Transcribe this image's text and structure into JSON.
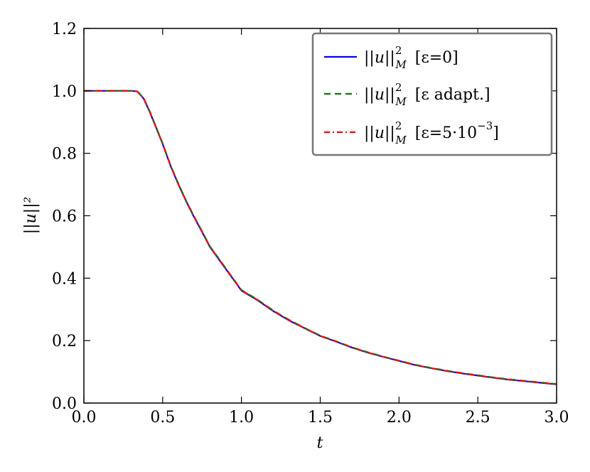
{
  "chart_data": {
    "type": "line",
    "xlabel": "t",
    "ylabel": "||u||²",
    "xlim": [
      0.0,
      3.0
    ],
    "ylim": [
      0.0,
      1.2
    ],
    "xticks": [
      "0.0",
      "0.5",
      "1.0",
      "1.5",
      "2.0",
      "2.5",
      "3.0"
    ],
    "yticks": [
      "0.0",
      "0.2",
      "0.4",
      "0.6",
      "0.8",
      "1.0",
      "1.2"
    ],
    "grid": false,
    "legend_position": "top-right",
    "x": [
      0.0,
      0.1,
      0.2,
      0.3,
      0.34,
      0.38,
      0.42,
      0.46,
      0.5,
      0.55,
      0.6,
      0.65,
      0.7,
      0.75,
      0.8,
      0.85,
      0.9,
      0.95,
      1.0,
      1.1,
      1.2,
      1.3,
      1.4,
      1.5,
      1.6,
      1.7,
      1.8,
      1.9,
      2.0,
      2.1,
      2.2,
      2.3,
      2.4,
      2.5,
      2.6,
      2.7,
      2.8,
      2.9,
      3.0
    ],
    "series": [
      {
        "name": "||u||²_M [ε=0]",
        "color": "#0000ff",
        "dash": "solid",
        "values": [
          1.0,
          1.0,
          1.0,
          1.0,
          0.998,
          0.975,
          0.93,
          0.88,
          0.83,
          0.76,
          0.7,
          0.645,
          0.595,
          0.548,
          0.5,
          0.465,
          0.43,
          0.395,
          0.36,
          0.33,
          0.295,
          0.265,
          0.24,
          0.215,
          0.197,
          0.178,
          0.162,
          0.148,
          0.135,
          0.122,
          0.112,
          0.103,
          0.095,
          0.088,
          0.081,
          0.075,
          0.07,
          0.065,
          0.06
        ]
      },
      {
        "name": "||u||²_M [ε adapt.]",
        "color": "#008000",
        "dash": "dashed",
        "values": [
          1.0,
          1.0,
          1.0,
          1.0,
          0.998,
          0.976,
          0.932,
          0.882,
          0.832,
          0.762,
          0.702,
          0.647,
          0.597,
          0.55,
          0.502,
          0.467,
          0.432,
          0.397,
          0.362,
          0.332,
          0.297,
          0.267,
          0.241,
          0.216,
          0.198,
          0.179,
          0.163,
          0.149,
          0.136,
          0.123,
          0.113,
          0.104,
          0.096,
          0.089,
          0.082,
          0.076,
          0.071,
          0.066,
          0.061
        ]
      },
      {
        "name": "||u||²_M [ε=5·10⁻³]",
        "color": "#ff0000",
        "dash": "dashdot",
        "values": [
          1.0,
          1.0,
          1.0,
          1.0,
          0.998,
          0.975,
          0.931,
          0.881,
          0.831,
          0.761,
          0.701,
          0.646,
          0.596,
          0.549,
          0.501,
          0.466,
          0.431,
          0.396,
          0.361,
          0.331,
          0.296,
          0.266,
          0.24,
          0.215,
          0.197,
          0.178,
          0.162,
          0.148,
          0.135,
          0.122,
          0.112,
          0.103,
          0.095,
          0.088,
          0.081,
          0.075,
          0.07,
          0.065,
          0.06
        ]
      }
    ],
    "legend": [
      {
        "norm": "||u||",
        "sup": "2",
        "sub": "M",
        "bracket": "[ε=0]"
      },
      {
        "norm": "||u||",
        "sup": "2",
        "sub": "M",
        "bracket": "[ε adapt.]"
      },
      {
        "norm": "||u||",
        "sup": "2",
        "sub": "M",
        "bracket_pre": "[ε=5·10",
        "bracket_sup": "−3",
        "bracket_post": "]"
      }
    ]
  }
}
